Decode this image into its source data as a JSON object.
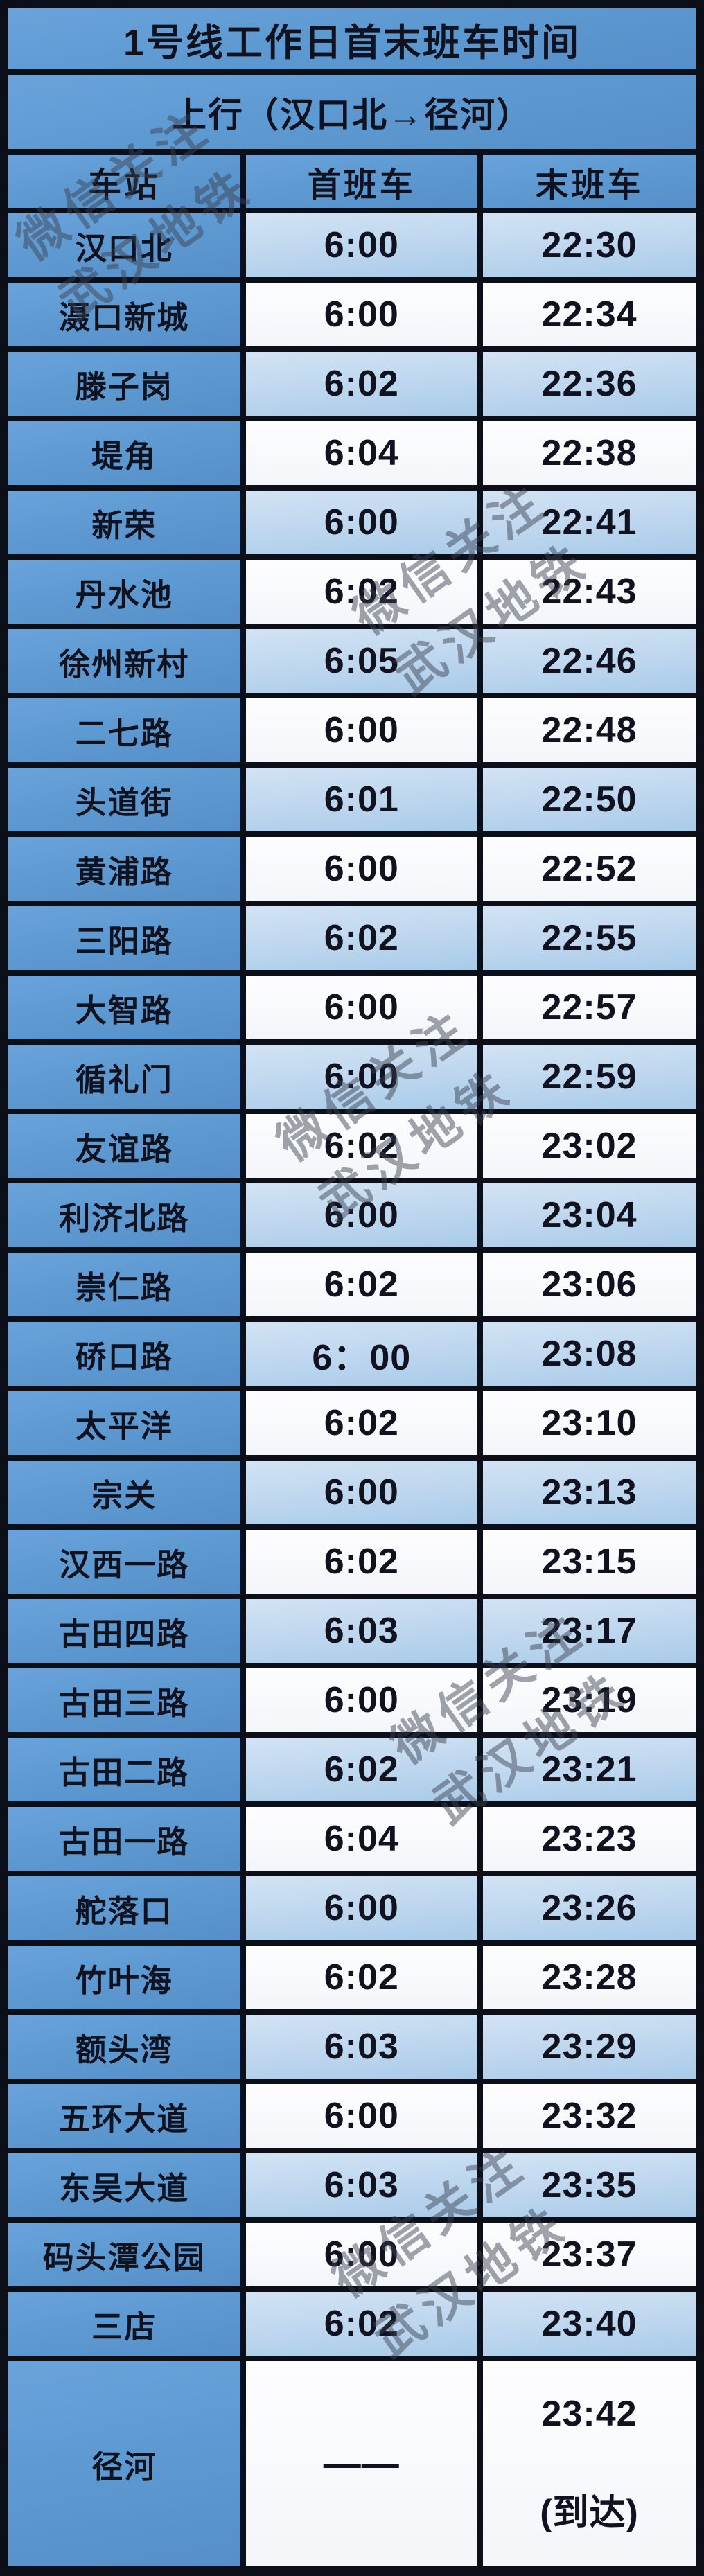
{
  "title": "1号线工作日首末班车时间",
  "direction": "上行（汉口北→径河）",
  "columns": [
    "车站",
    "首班车",
    "末班车"
  ],
  "watermark": {
    "line1": "微信关注",
    "line2": "武汉地铁"
  },
  "colors": {
    "cell_blue": "#5e9ad2",
    "cell_light_blue": "#bdd6ee",
    "cell_white": "#f8fafc",
    "border": "#0c0f18",
    "text": "#10131f",
    "watermark_gray": "#3a4050"
  },
  "rows": [
    {
      "station": "汉口北",
      "first": "6:00",
      "last": "22:30"
    },
    {
      "station": "滠口新城",
      "first": "6:00",
      "last": "22:34"
    },
    {
      "station": "滕子岗",
      "first": "6:02",
      "last": "22:36"
    },
    {
      "station": "堤角",
      "first": "6:04",
      "last": "22:38"
    },
    {
      "station": "新荣",
      "first": "6:00",
      "last": "22:41"
    },
    {
      "station": "丹水池",
      "first": "6:02",
      "last": "22:43"
    },
    {
      "station": "徐州新村",
      "first": "6:05",
      "last": "22:46"
    },
    {
      "station": "二七路",
      "first": "6:00",
      "last": "22:48"
    },
    {
      "station": "头道街",
      "first": "6:01",
      "last": "22:50"
    },
    {
      "station": "黄浦路",
      "first": "6:00",
      "last": "22:52"
    },
    {
      "station": "三阳路",
      "first": "6:02",
      "last": "22:55"
    },
    {
      "station": "大智路",
      "first": "6:00",
      "last": "22:57"
    },
    {
      "station": "循礼门",
      "first": "6:00",
      "last": "22:59"
    },
    {
      "station": "友谊路",
      "first": "6:02",
      "last": "23:02"
    },
    {
      "station": "利济北路",
      "first": "6:00",
      "last": "23:04"
    },
    {
      "station": "崇仁路",
      "first": "6:02",
      "last": "23:06"
    },
    {
      "station": "硚口路",
      "first": "6：00",
      "last": "23:08"
    },
    {
      "station": "太平洋",
      "first": "6:02",
      "last": "23:10"
    },
    {
      "station": "宗关",
      "first": "6:00",
      "last": "23:13"
    },
    {
      "station": "汉西一路",
      "first": "6:02",
      "last": "23:15"
    },
    {
      "station": "古田四路",
      "first": "6:03",
      "last": "23:17"
    },
    {
      "station": "古田三路",
      "first": "6:00",
      "last": "23:19"
    },
    {
      "station": "古田二路",
      "first": "6:02",
      "last": "23:21"
    },
    {
      "station": "古田一路",
      "first": "6:04",
      "last": "23:23"
    },
    {
      "station": "舵落口",
      "first": "6:00",
      "last": "23:26"
    },
    {
      "station": "竹叶海",
      "first": "6:02",
      "last": "23:28"
    },
    {
      "station": "额头湾",
      "first": "6:03",
      "last": "23:29"
    },
    {
      "station": "五环大道",
      "first": "6:00",
      "last": "23:32"
    },
    {
      "station": "东吴大道",
      "first": "6:03",
      "last": "23:35"
    },
    {
      "station": "码头潭公园",
      "first": "6:00",
      "last": "23:37"
    },
    {
      "station": "三店",
      "first": "6:02",
      "last": "23:40"
    }
  ],
  "terminal_row": {
    "station": "径河",
    "first": "——",
    "last_time": "23:42",
    "last_note": "(到达)"
  }
}
